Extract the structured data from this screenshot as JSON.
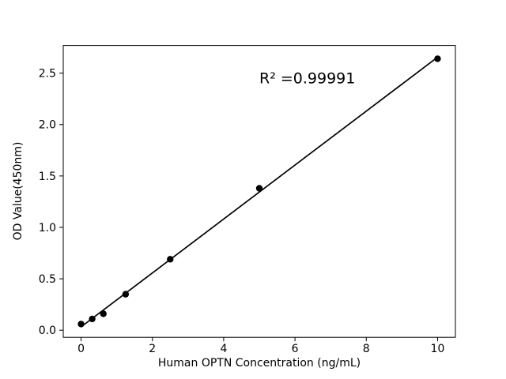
{
  "chart_data": {
    "type": "scatter",
    "xlabel": "Human OPTN Concentration (ng/mL)",
    "ylabel": "OD Value(450nm)",
    "x": [
      0,
      0.3125,
      0.625,
      1.25,
      2.5,
      5,
      10
    ],
    "y": [
      0.06,
      0.11,
      0.16,
      0.35,
      0.69,
      1.38,
      2.64
    ],
    "fit_line": {
      "style": "linear-regression",
      "x_start": 0,
      "x_end": 10
    },
    "annotation": {
      "text": "R² =0.99991",
      "x": 5,
      "y": 2.4
    },
    "xlim": [
      -0.5,
      10.5
    ],
    "ylim": [
      -0.069,
      2.769
    ],
    "x_ticks": [
      0,
      2,
      4,
      6,
      8,
      10
    ],
    "y_ticks": [
      0.0,
      0.5,
      1.0,
      1.5,
      2.0,
      2.5
    ],
    "x_tick_labels": [
      "0",
      "2",
      "4",
      "6",
      "8",
      "10"
    ],
    "y_tick_labels": [
      "0.0",
      "0.5",
      "1.0",
      "1.5",
      "2.0",
      "2.5"
    ],
    "grid": false,
    "legend": "none",
    "marker_color": "#000000",
    "line_color": "#000000",
    "axis_color": "#000000",
    "background": "#ffffff"
  }
}
